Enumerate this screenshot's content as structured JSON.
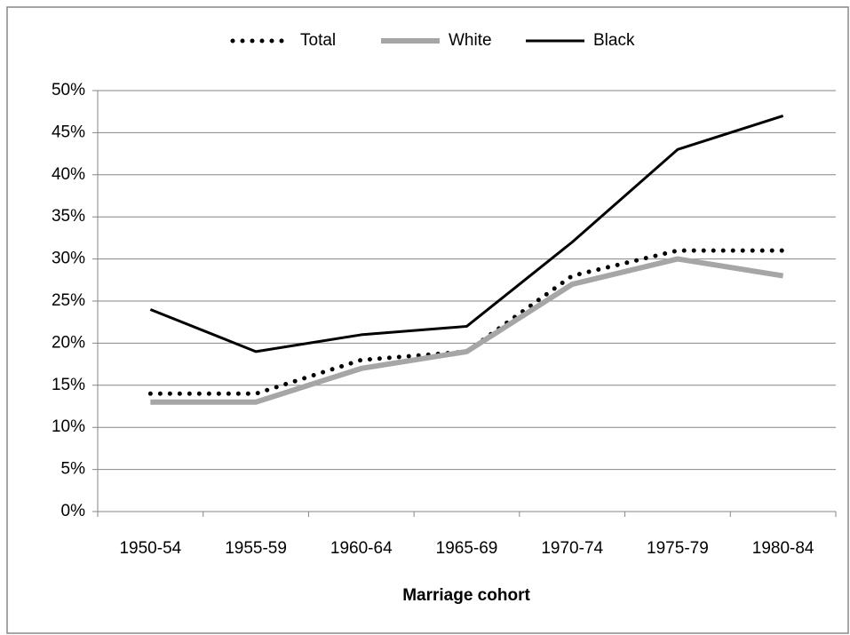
{
  "chart_data": {
    "type": "line",
    "x_label": "Marriage cohort",
    "categories": [
      "1950-54",
      "1955-59",
      "1960-64",
      "1965-69",
      "1970-74",
      "1975-79",
      "1980-84"
    ],
    "series": [
      {
        "name": "Total",
        "color": "#000000",
        "style": "dotted",
        "values": [
          14,
          14,
          18,
          19,
          28,
          31,
          31
        ]
      },
      {
        "name": "White",
        "color": "#a6a6a6",
        "style": "solid",
        "values": [
          13,
          13,
          17,
          19,
          27,
          30,
          28
        ]
      },
      {
        "name": "Black",
        "color": "#000000",
        "style": "solid",
        "values": [
          24,
          19,
          21,
          22,
          32,
          43,
          47
        ]
      }
    ],
    "ylim": [
      0,
      50
    ],
    "yticks": [
      {
        "value": 0,
        "label": "0%"
      },
      {
        "value": 5,
        "label": "5%"
      },
      {
        "value": 10,
        "label": "10%"
      },
      {
        "value": 15,
        "label": "15%"
      },
      {
        "value": 20,
        "label": "20%"
      },
      {
        "value": 25,
        "label": "25%"
      },
      {
        "value": 30,
        "label": "30%"
      },
      {
        "value": 35,
        "label": "35%"
      },
      {
        "value": 40,
        "label": "40%"
      },
      {
        "value": 45,
        "label": "45%"
      },
      {
        "value": 50,
        "label": "50%"
      }
    ],
    "grid": true,
    "legend": "top"
  }
}
